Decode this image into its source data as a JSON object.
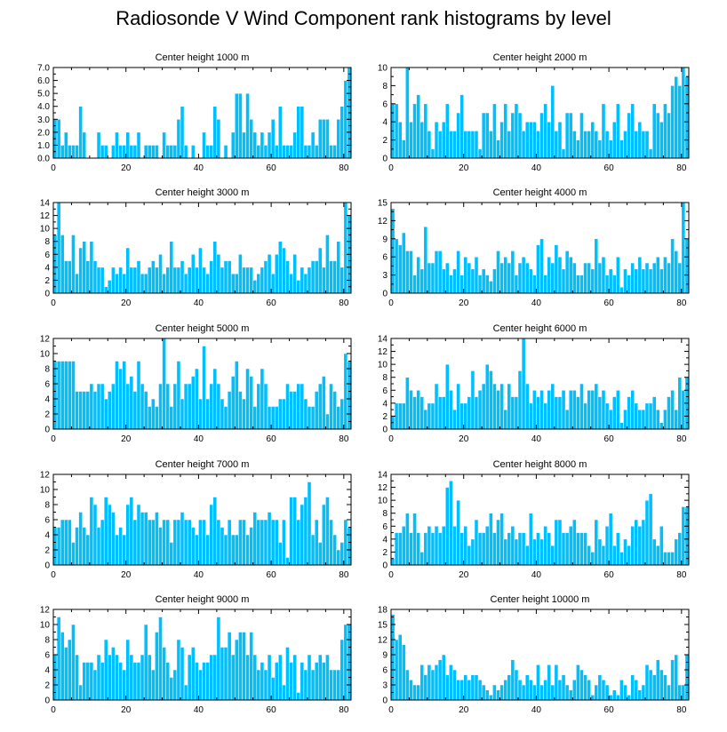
{
  "title": "Radiosonde V Wind Component rank histograms by level",
  "colors": {
    "bar": "#00BFFF",
    "axis": "#000000",
    "background": "#FFFFFF"
  },
  "chart_data": [
    {
      "type": "bar",
      "title": "Center height 1000 m",
      "xlim": [
        0,
        82
      ],
      "ylim": [
        0,
        7
      ],
      "xticks": [
        "0",
        "20",
        "40",
        "60",
        "80"
      ],
      "yticks": [
        "0.0",
        "1.0",
        "2.0",
        "3.0",
        "4.0",
        "5.0",
        "6.0",
        "7.0"
      ],
      "values": [
        3,
        3,
        1,
        2,
        1,
        1,
        1,
        4,
        2,
        0,
        0,
        0,
        2,
        1,
        1,
        0,
        1,
        2,
        1,
        1,
        2,
        1,
        1,
        2,
        0,
        1,
        1,
        1,
        1,
        0,
        2,
        1,
        1,
        1,
        3,
        4,
        1,
        0,
        1,
        0,
        0,
        2,
        1,
        1,
        4,
        3,
        0,
        1,
        0,
        2,
        5,
        5,
        2,
        5,
        3,
        2,
        1,
        2,
        1,
        2,
        3,
        1,
        4,
        1,
        1,
        1,
        2,
        4,
        4,
        1,
        1,
        2,
        1,
        3,
        3,
        3,
        1,
        1,
        3,
        4,
        6,
        7
      ]
    },
    {
      "type": "bar",
      "title": "Center height 2000 m",
      "xlim": [
        0,
        82
      ],
      "ylim": [
        0,
        10
      ],
      "xticks": [
        "0",
        "20",
        "40",
        "60",
        "80"
      ],
      "yticks": [
        "0",
        "2",
        "4",
        "6",
        "8",
        "10"
      ],
      "values": [
        6,
        6,
        4,
        2,
        10,
        4,
        6,
        7,
        4,
        6,
        3,
        1,
        4,
        3,
        4,
        6,
        3,
        3,
        5,
        7,
        3,
        3,
        3,
        3,
        1,
        5,
        5,
        3,
        6,
        2,
        4,
        6,
        3,
        5,
        6,
        5,
        3,
        4,
        4,
        4,
        3,
        5,
        6,
        4,
        8,
        3,
        4,
        1,
        5,
        5,
        3,
        2,
        5,
        3,
        3,
        4,
        3,
        2,
        6,
        3,
        2,
        4,
        6,
        2,
        3,
        5,
        6,
        3,
        4,
        3,
        3,
        1,
        6,
        5,
        4,
        6,
        5,
        8,
        9,
        8,
        10,
        9
      ]
    },
    {
      "type": "bar",
      "title": "Center height 3000 m",
      "xlim": [
        0,
        82
      ],
      "ylim": [
        0,
        14
      ],
      "xticks": [
        "0",
        "20",
        "40",
        "60",
        "80"
      ],
      "yticks": [
        "0",
        "2",
        "4",
        "6",
        "8",
        "10",
        "12",
        "14"
      ],
      "values": [
        9,
        14,
        9,
        5,
        5,
        9,
        3,
        7,
        8,
        5,
        8,
        5,
        4,
        4,
        1,
        2,
        4,
        3,
        4,
        3,
        7,
        4,
        4,
        5,
        3,
        3,
        4,
        5,
        4,
        6,
        3,
        4,
        8,
        4,
        4,
        5,
        3,
        4,
        6,
        4,
        7,
        4,
        3,
        5,
        8,
        6,
        4,
        5,
        5,
        3,
        3,
        6,
        4,
        4,
        4,
        2,
        3,
        4,
        5,
        6,
        3,
        6,
        8,
        7,
        5,
        3,
        6,
        2,
        4,
        3,
        4,
        5,
        5,
        7,
        4,
        9,
        5,
        5,
        8,
        4,
        14,
        12
      ]
    },
    {
      "type": "bar",
      "title": "Center height 4000 m",
      "xlim": [
        0,
        82
      ],
      "ylim": [
        0,
        15
      ],
      "xticks": [
        "0",
        "20",
        "40",
        "60",
        "80"
      ],
      "yticks": [
        "0",
        "3",
        "6",
        "9",
        "12",
        "15"
      ],
      "values": [
        14,
        9,
        8,
        10,
        7,
        7,
        3,
        6,
        4,
        11,
        5,
        5,
        7,
        7,
        4,
        5,
        3,
        4,
        7,
        3,
        6,
        5,
        4,
        6,
        3,
        4,
        3,
        2,
        4,
        7,
        5,
        6,
        5,
        7,
        3,
        5,
        6,
        5,
        4,
        3,
        8,
        9,
        3,
        6,
        5,
        8,
        6,
        4,
        7,
        6,
        5,
        3,
        3,
        5,
        5,
        4,
        9,
        5,
        6,
        3,
        4,
        3,
        6,
        1,
        4,
        3,
        5,
        4,
        6,
        4,
        5,
        4,
        5,
        6,
        4,
        6,
        5,
        9,
        7,
        5,
        15,
        9
      ]
    },
    {
      "type": "bar",
      "title": "Center height 5000 m",
      "xlim": [
        0,
        82
      ],
      "ylim": [
        0,
        12
      ],
      "xticks": [
        "0",
        "20",
        "40",
        "60",
        "80"
      ],
      "yticks": [
        "0",
        "2",
        "4",
        "6",
        "8",
        "10",
        "12"
      ],
      "values": [
        9,
        9,
        9,
        9,
        9,
        9,
        5,
        5,
        5,
        5,
        6,
        5,
        6,
        6,
        4,
        5,
        6,
        9,
        8,
        9,
        6,
        7,
        5,
        9,
        6,
        5,
        3,
        4,
        3,
        6,
        12,
        6,
        3,
        6,
        9,
        4,
        6,
        6,
        7,
        8,
        4,
        11,
        4,
        6,
        8,
        6,
        4,
        3,
        5,
        7,
        9,
        5,
        4,
        8,
        7,
        3,
        6,
        8,
        6,
        3,
        3,
        3,
        4,
        4,
        6,
        5,
        5,
        6,
        6,
        4,
        3,
        3,
        5,
        6,
        7,
        2,
        6,
        5,
        3,
        4,
        10,
        9
      ]
    },
    {
      "type": "bar",
      "title": "Center height 6000 m",
      "xlim": [
        0,
        82
      ],
      "ylim": [
        0,
        14
      ],
      "xticks": [
        "0",
        "20",
        "40",
        "60",
        "80"
      ],
      "yticks": [
        "0",
        "2",
        "4",
        "6",
        "8",
        "10",
        "12",
        "14"
      ],
      "values": [
        2,
        4,
        4,
        4,
        8,
        6,
        5,
        6,
        5,
        3,
        4,
        4,
        7,
        5,
        5,
        10,
        6,
        3,
        7,
        4,
        4,
        5,
        9,
        5,
        6,
        7,
        10,
        9,
        7,
        6,
        7,
        3,
        7,
        5,
        5,
        9,
        14,
        7,
        4,
        6,
        5,
        6,
        4,
        6,
        7,
        5,
        5,
        6,
        3,
        6,
        6,
        5,
        7,
        4,
        6,
        6,
        7,
        5,
        6,
        4,
        3,
        5,
        6,
        1,
        3,
        5,
        6,
        4,
        3,
        3,
        4,
        4,
        5,
        3,
        1,
        3,
        5,
        6,
        3,
        8,
        6,
        8
      ]
    },
    {
      "type": "bar",
      "title": "Center height 7000 m",
      "xlim": [
        0,
        82
      ],
      "ylim": [
        0,
        12
      ],
      "xticks": [
        "0",
        "20",
        "40",
        "60",
        "80"
      ],
      "yticks": [
        "0",
        "2",
        "4",
        "6",
        "8",
        "10",
        "12"
      ],
      "values": [
        5,
        5,
        6,
        6,
        6,
        3,
        5,
        7,
        5,
        4,
        9,
        8,
        5,
        6,
        9,
        8,
        7,
        4,
        5,
        4,
        8,
        9,
        6,
        8,
        7,
        7,
        6,
        6,
        7,
        5,
        6,
        6,
        3,
        6,
        6,
        7,
        6,
        6,
        5,
        4,
        6,
        6,
        4,
        8,
        9,
        6,
        5,
        4,
        6,
        4,
        4,
        6,
        6,
        4,
        5,
        7,
        6,
        6,
        6,
        7,
        6,
        6,
        3,
        6,
        1,
        9,
        9,
        6,
        8,
        9,
        11,
        4,
        6,
        3,
        8,
        9,
        6,
        4,
        2,
        3,
        6,
        5
      ]
    },
    {
      "type": "bar",
      "title": "Center height 8000 m",
      "xlim": [
        0,
        82
      ],
      "ylim": [
        0,
        14
      ],
      "xticks": [
        "0",
        "20",
        "40",
        "60",
        "80"
      ],
      "yticks": [
        "0",
        "2",
        "4",
        "6",
        "8",
        "10",
        "12",
        "14"
      ],
      "values": [
        1,
        5,
        5,
        6,
        8,
        5,
        8,
        5,
        2,
        5,
        6,
        5,
        6,
        5,
        6,
        12,
        13,
        6,
        10,
        5,
        6,
        3,
        4,
        7,
        5,
        5,
        6,
        8,
        5,
        7,
        8,
        4,
        5,
        6,
        4,
        5,
        5,
        3,
        8,
        4,
        5,
        4,
        6,
        5,
        3,
        7,
        7,
        5,
        5,
        6,
        7,
        5,
        5,
        5,
        3,
        2,
        7,
        4,
        3,
        6,
        8,
        3,
        5,
        2,
        4,
        3,
        6,
        7,
        6,
        7,
        10,
        11,
        4,
        3,
        6,
        2,
        2,
        2,
        4,
        5,
        9,
        9
      ]
    },
    {
      "type": "bar",
      "title": "Center height 9000 m",
      "xlim": [
        0,
        82
      ],
      "ylim": [
        0,
        12
      ],
      "xticks": [
        "0",
        "20",
        "40",
        "60",
        "80"
      ],
      "yticks": [
        "0",
        "2",
        "4",
        "6",
        "8",
        "10",
        "12"
      ],
      "values": [
        6,
        11,
        9,
        7,
        8,
        10,
        6,
        2,
        5,
        5,
        5,
        4,
        6,
        5,
        8,
        6,
        7,
        6,
        5,
        4,
        8,
        6,
        5,
        5,
        6,
        10,
        6,
        4,
        9,
        11,
        7,
        5,
        3,
        4,
        8,
        7,
        2,
        6,
        7,
        5,
        4,
        5,
        5,
        6,
        6,
        11,
        7,
        7,
        9,
        6,
        8,
        9,
        9,
        6,
        9,
        6,
        4,
        5,
        4,
        6,
        3,
        5,
        6,
        2,
        7,
        5,
        6,
        1,
        5,
        4,
        6,
        4,
        5,
        6,
        5,
        6,
        4,
        4,
        4,
        8,
        10,
        10
      ]
    },
    {
      "type": "bar",
      "title": "Center height 10000 m",
      "xlim": [
        0,
        82
      ],
      "ylim": [
        0,
        18
      ],
      "xticks": [
        "0",
        "20",
        "40",
        "60",
        "80"
      ],
      "yticks": [
        "0",
        "3",
        "6",
        "9",
        "12",
        "15",
        "18"
      ],
      "values": [
        17,
        12,
        13,
        11,
        6,
        4,
        3,
        3,
        7,
        5,
        7,
        6,
        7,
        8,
        9,
        5,
        7,
        6,
        4,
        4,
        5,
        4,
        5,
        5,
        4,
        3,
        2,
        1,
        3,
        2,
        3,
        4,
        5,
        8,
        6,
        4,
        3,
        5,
        4,
        3,
        7,
        3,
        4,
        7,
        3,
        7,
        4,
        5,
        3,
        2,
        4,
        7,
        6,
        5,
        4,
        1,
        3,
        5,
        4,
        3,
        1,
        2,
        1,
        4,
        3,
        1,
        5,
        4,
        2,
        3,
        7,
        6,
        5,
        8,
        6,
        5,
        3,
        8,
        9,
        3,
        3,
        9
      ]
    }
  ]
}
